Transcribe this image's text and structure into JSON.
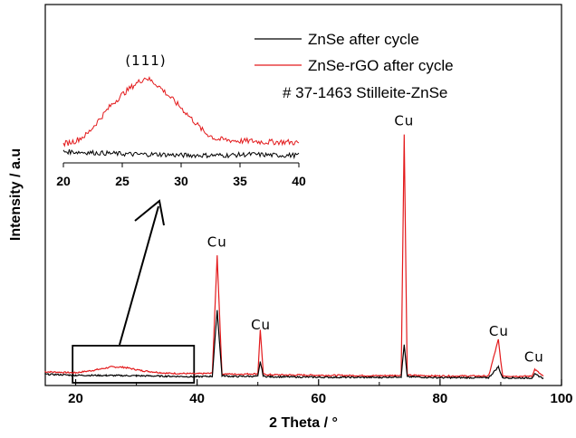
{
  "chart_data": [
    {
      "type": "line",
      "xlabel": "2 Theta / °",
      "ylabel": "Intensity / a.u",
      "xlim": [
        15,
        100
      ],
      "xticks": [
        "20",
        "40",
        "60",
        "80",
        "100"
      ],
      "ylim": [
        0,
        1
      ],
      "legend": {
        "placement": "top-right",
        "entries": [
          "ZnSe after cycle",
          "ZnSe-rGO after cycle"
        ],
        "extra_text": "# 37-1463 Stilleite-ZnSe"
      },
      "series": [
        {
          "name": "ZnSe after cycle",
          "color": "#000000",
          "x": [
            15,
            20,
            25,
            30,
            35,
            40,
            42.5,
            43.3,
            44.1,
            46,
            50,
            50.4,
            50.9,
            52,
            60,
            70,
            73.6,
            74.1,
            74.6,
            80,
            88,
            89.6,
            90.3,
            93,
            95.1,
            95.6,
            97
          ],
          "y": [
            0.02,
            0.016,
            0.015,
            0.014,
            0.012,
            0.01,
            0.012,
            0.28,
            0.014,
            0.011,
            0.012,
            0.07,
            0.012,
            0.01,
            0.008,
            0.007,
            0.01,
            0.14,
            0.01,
            0.006,
            0.006,
            0.05,
            0.006,
            0.005,
            0.005,
            0.02,
            0.004
          ]
        },
        {
          "name": "ZnSe-rGO after cycle",
          "color": "#e31a1c",
          "x": [
            15,
            20,
            23,
            26,
            28,
            31,
            35,
            40,
            42.5,
            43.3,
            44.1,
            46,
            50,
            50.4,
            50.9,
            52,
            60,
            70,
            73.6,
            74.1,
            74.6,
            80,
            88,
            89.6,
            90.3,
            93,
            95.1,
            95.6,
            97
          ],
          "y": [
            0.03,
            0.026,
            0.036,
            0.05,
            0.048,
            0.034,
            0.024,
            0.022,
            0.024,
            0.5,
            0.022,
            0.02,
            0.022,
            0.2,
            0.02,
            0.018,
            0.016,
            0.014,
            0.016,
            0.99,
            0.016,
            0.013,
            0.013,
            0.16,
            0.013,
            0.012,
            0.012,
            0.04,
            0.011
          ]
        }
      ],
      "peak_labels": [
        {
          "text": "Cu",
          "x": 43.3
        },
        {
          "text": "Cu",
          "x": 50.5
        },
        {
          "text": "Cu",
          "x": 74.1
        },
        {
          "text": "Cu",
          "x": 89.7
        },
        {
          "text": "Cu",
          "x": 95.5
        }
      ],
      "zoom_box": {
        "x": [
          19.5,
          39.5
        ]
      }
    },
    {
      "type": "line",
      "role": "inset",
      "xlim": [
        20,
        40
      ],
      "xticks": [
        "20",
        "25",
        "30",
        "35",
        "40"
      ],
      "annotation": "(111)",
      "annotation_x": 27,
      "series": [
        {
          "name": "ZnSe after cycle",
          "color": "#000000",
          "x": [
            20,
            22,
            24,
            26,
            28,
            30,
            32,
            34,
            36,
            38,
            40
          ],
          "y": [
            0.12,
            0.11,
            0.1,
            0.09,
            0.09,
            0.08,
            0.08,
            0.08,
            0.09,
            0.08,
            0.08
          ]
        },
        {
          "name": "ZnSe-rGO after cycle",
          "color": "#e31a1c",
          "x": [
            20,
            21,
            22,
            23,
            24,
            25,
            26,
            27,
            28,
            29,
            30,
            31,
            32,
            33,
            34,
            35,
            36,
            37,
            38,
            39,
            40
          ],
          "y": [
            0.2,
            0.23,
            0.3,
            0.45,
            0.6,
            0.72,
            0.82,
            0.9,
            0.82,
            0.7,
            0.58,
            0.45,
            0.32,
            0.25,
            0.24,
            0.23,
            0.23,
            0.22,
            0.22,
            0.22,
            0.21
          ]
        }
      ]
    }
  ]
}
